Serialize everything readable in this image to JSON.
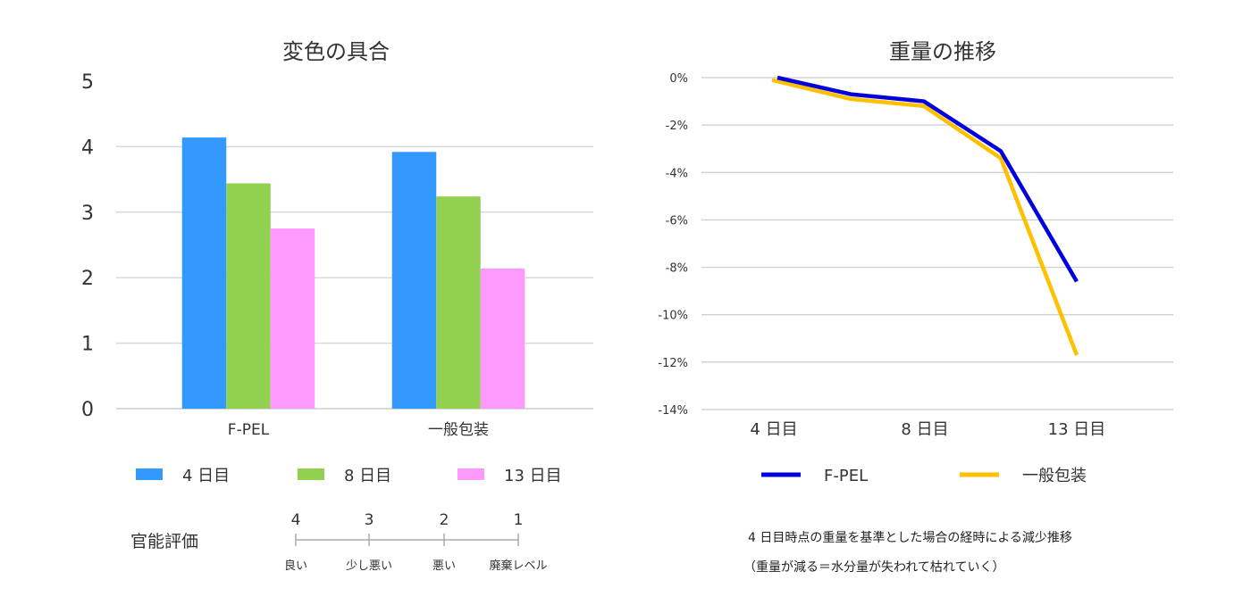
{
  "chart_data": [
    {
      "type": "bar",
      "title": "変色の具合",
      "categories": [
        "F-PEL",
        "一般包装"
      ],
      "series": [
        {
          "name": "4 日目",
          "color": "#3399ff",
          "values": [
            4.14,
            3.92
          ]
        },
        {
          "name": "8 日目",
          "color": "#92d050",
          "values": [
            3.44,
            3.24
          ]
        },
        {
          "name": "13 日目",
          "color": "#ff99ff",
          "values": [
            2.75,
            2.14
          ]
        }
      ],
      "xlabel": "",
      "ylabel": "",
      "ylim": [
        0,
        5
      ],
      "yticks": [
        "0",
        "1",
        "2",
        "3",
        "4",
        "5"
      ],
      "grid": true,
      "legend": "bottom",
      "scale_note": {
        "label": "官能評価",
        "ticks": [
          {
            "value": "4",
            "text": "良い"
          },
          {
            "value": "3",
            "text": "少し悪い"
          },
          {
            "value": "2",
            "text": "悪い"
          },
          {
            "value": "1",
            "text": "廃棄レベル"
          }
        ]
      }
    },
    {
      "type": "line",
      "title": "重量の推移",
      "x": [
        4,
        6,
        8,
        11,
        13
      ],
      "xticks": [
        {
          "value": 4,
          "label": "4 日目"
        },
        {
          "value": 8,
          "label": "8 日目"
        },
        {
          "value": 13,
          "label": "13 日目"
        }
      ],
      "series": [
        {
          "name": "F-PEL",
          "color": "#0000dd",
          "values": [
            0.0,
            -0.7,
            -1.0,
            -3.1,
            -8.6
          ]
        },
        {
          "name": "一般包装",
          "color": "#ffc000",
          "values": [
            -0.1,
            -0.9,
            -1.2,
            -3.4,
            -11.7
          ]
        }
      ],
      "xlabel": "",
      "ylabel": "",
      "ylim": [
        -14,
        0
      ],
      "yticks": [
        "0%",
        "-2%",
        "-4%",
        "-6%",
        "-8%",
        "-10%",
        "-12%",
        "-14%"
      ],
      "grid": true,
      "legend": "bottom",
      "notes": [
        "4 日目時点の重量を基準とした場合の経時による減少推移",
        "（重量が減る＝水分量が失われて枯れていく）"
      ]
    }
  ]
}
